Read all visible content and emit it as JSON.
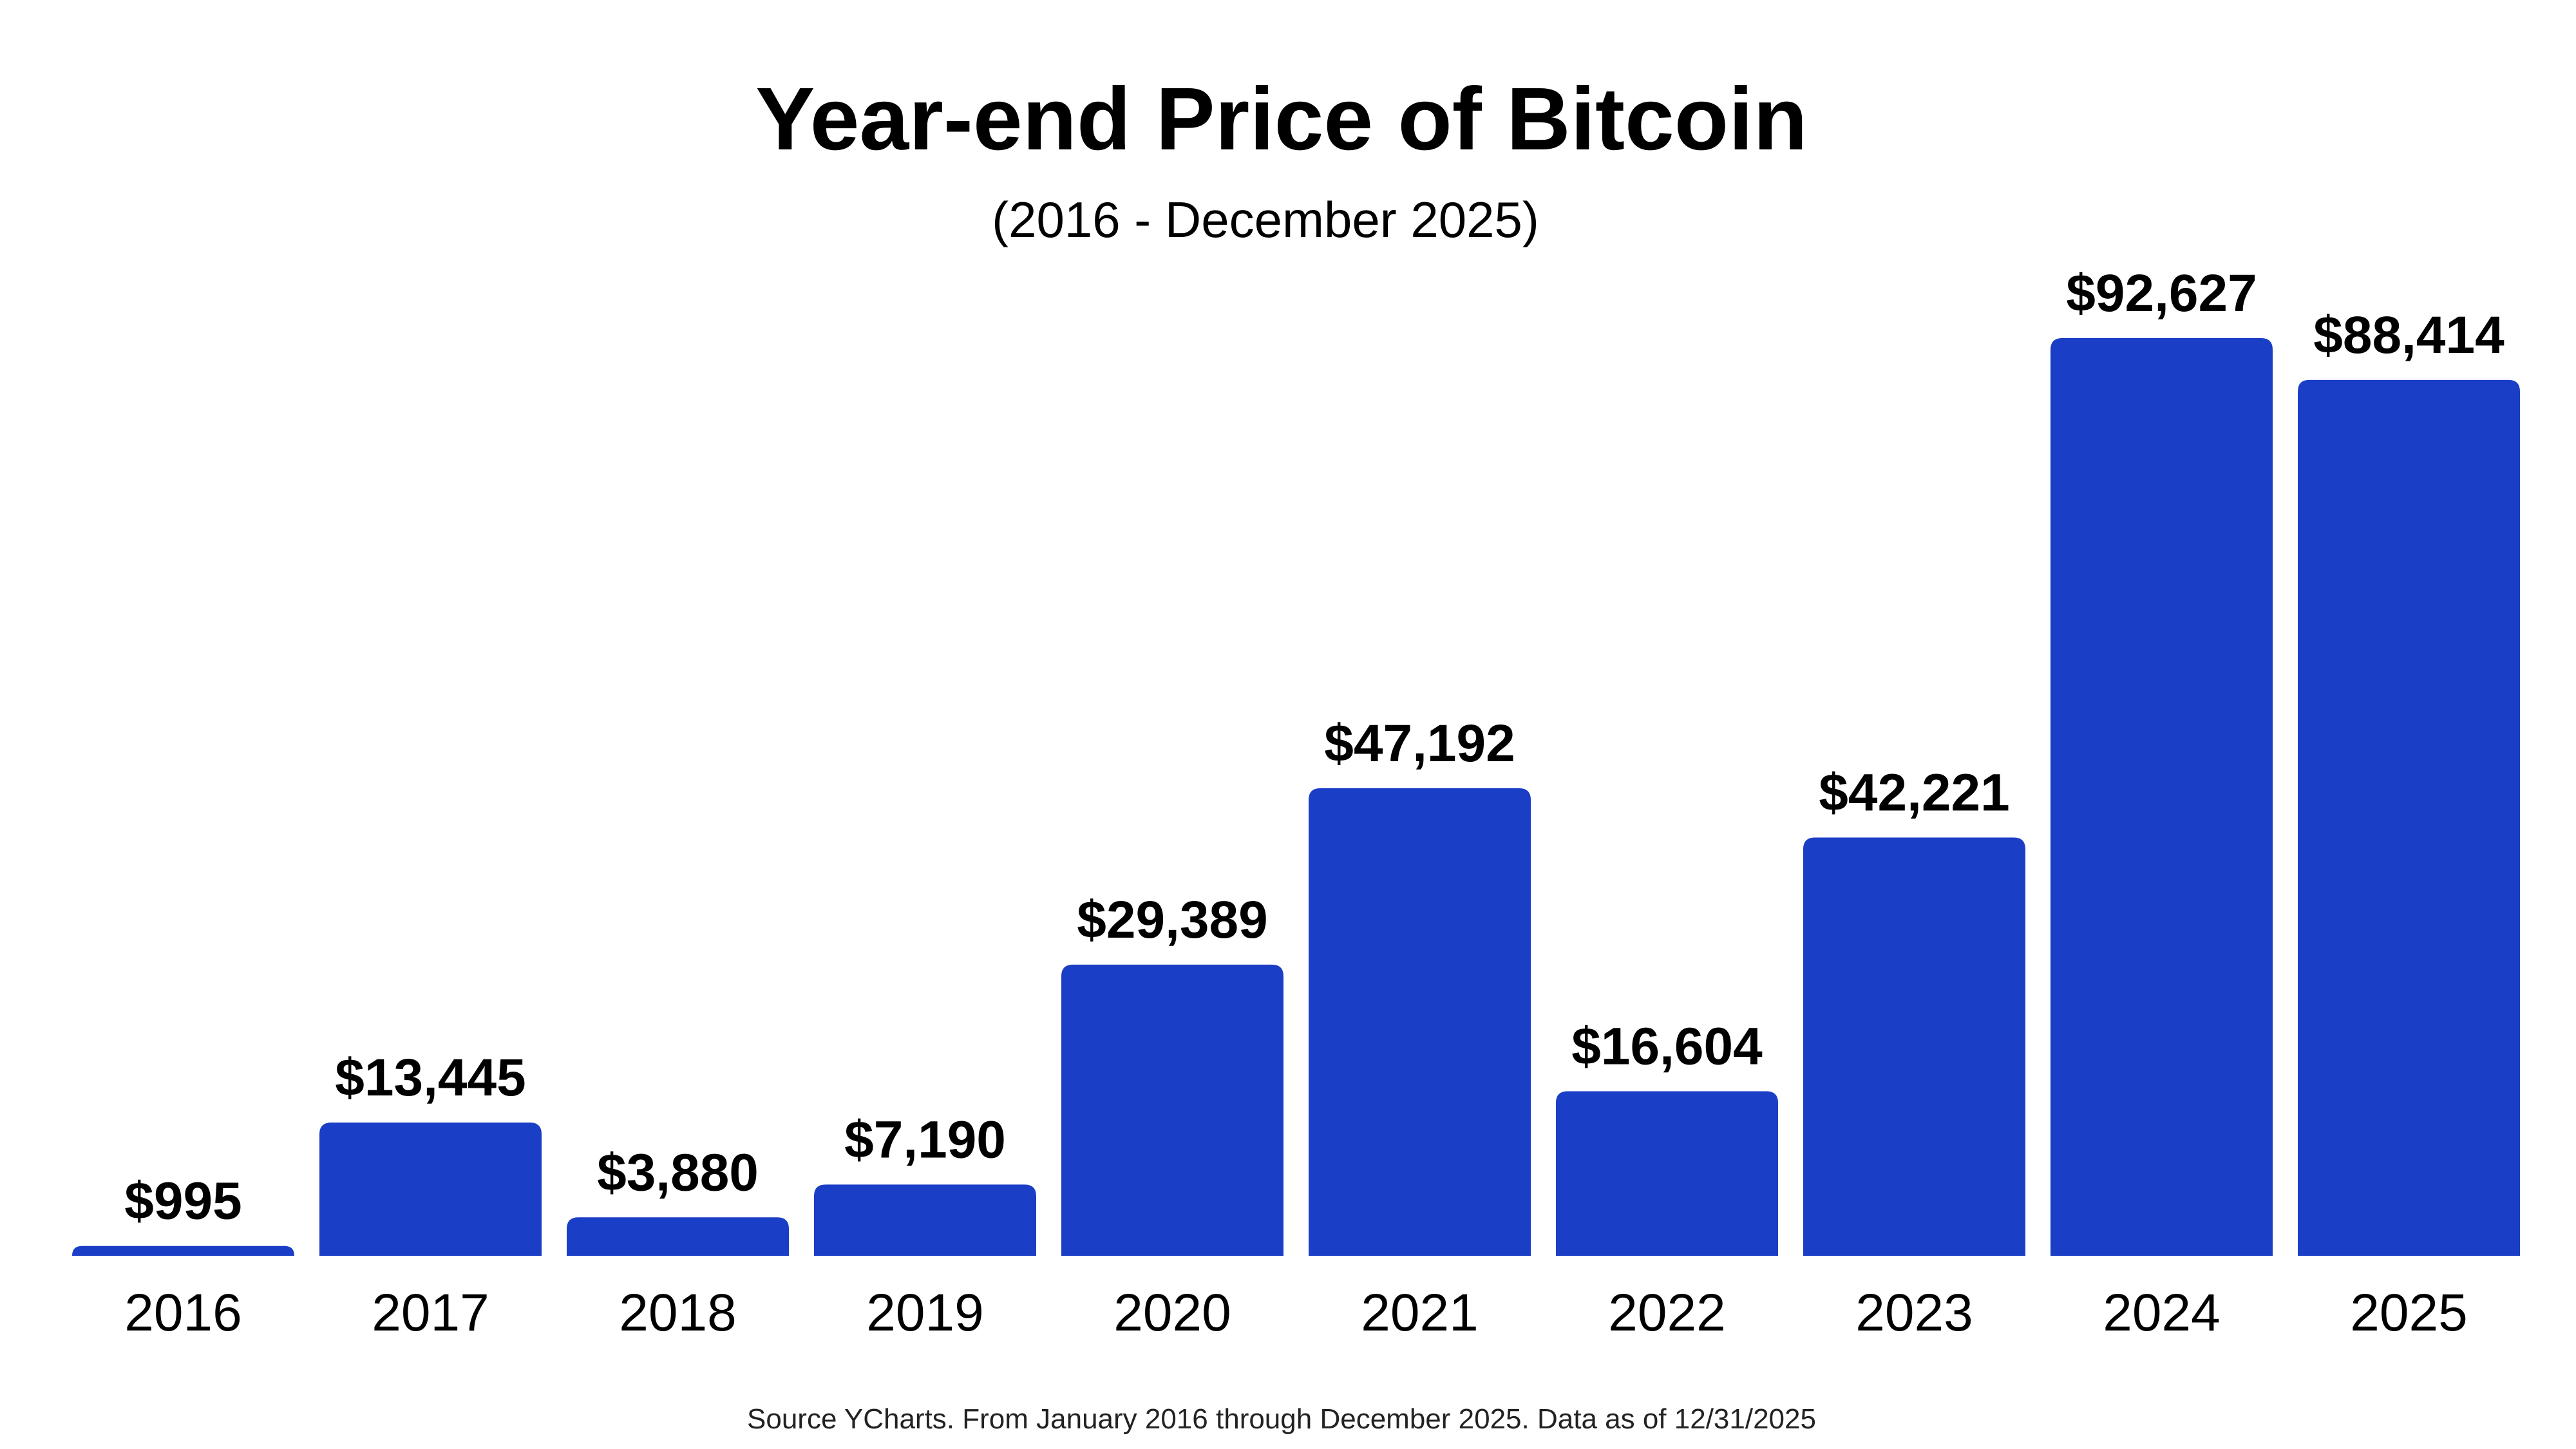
{
  "chart_data": {
    "type": "bar",
    "title": "Year-end Price of Bitcoin",
    "subtitle": "(2016 - December 2025)",
    "categories": [
      "2016",
      "2017",
      "2018",
      "2019",
      "2020",
      "2021",
      "2022",
      "2023",
      "2024",
      "2025"
    ],
    "values": [
      995,
      13445,
      3880,
      7190,
      29389,
      47192,
      16604,
      42221,
      92627,
      88414
    ],
    "value_labels": [
      "$995",
      "$13,445",
      "$3,880",
      "$7,190",
      "$29,389",
      "$47,192",
      "$16,604",
      "$42,221",
      "$92,627",
      "$88,414"
    ],
    "xlabel": "",
    "ylabel": "",
    "ylim": [
      0,
      92627
    ],
    "grid": false,
    "legend": "none",
    "bar_color": "#1B3EC6",
    "source": "Source YCharts. From January 2016 through December 2025. Data as of 12/31/2025"
  }
}
